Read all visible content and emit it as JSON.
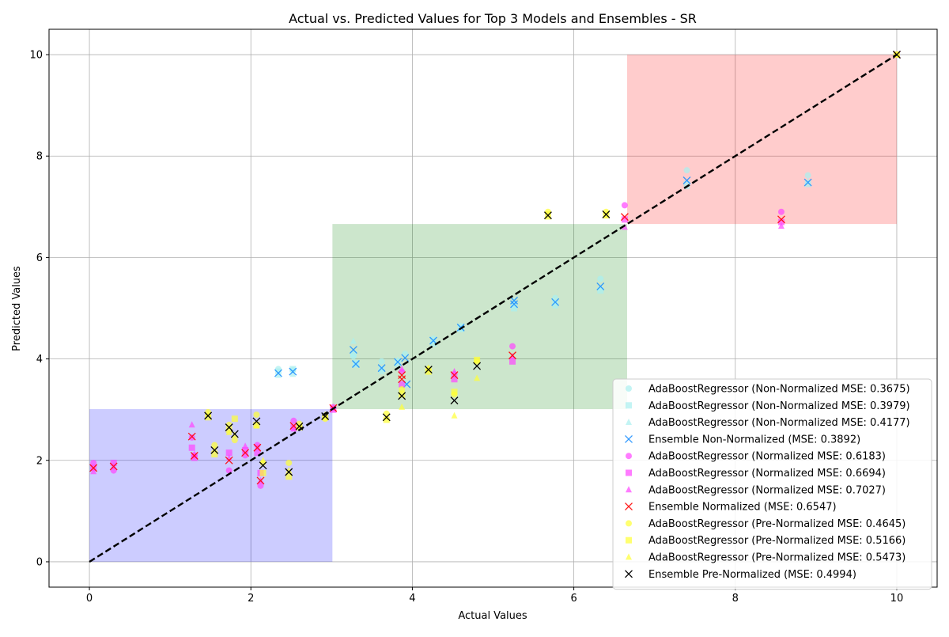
{
  "chart_data": {
    "type": "scatter",
    "title": "Actual vs. Predicted Values for Top 3 Models and Ensembles - SR",
    "xlabel": "Actual Values",
    "ylabel": "Predicted Values",
    "xlim": [
      -0.5,
      10.5
    ],
    "ylim": [
      -0.5,
      10.5
    ],
    "xticks": [
      0,
      2,
      4,
      6,
      8,
      10
    ],
    "yticks": [
      0,
      2,
      4,
      6,
      8,
      10
    ],
    "grid": true,
    "legend_position": "lower-right",
    "regions": [
      {
        "name": "low",
        "x": [
          0,
          3.01
        ],
        "y": [
          0,
          3.01
        ],
        "color": "#0000ff",
        "opacity": 0.2
      },
      {
        "name": "mid",
        "x": [
          3.01,
          6.66
        ],
        "y": [
          3.01,
          6.66
        ],
        "color": "#008000",
        "opacity": 0.2
      },
      {
        "name": "high",
        "x": [
          6.66,
          10
        ],
        "y": [
          6.66,
          10
        ],
        "color": "#ff0000",
        "opacity": 0.2
      }
    ],
    "reference_line": {
      "x": [
        0,
        10
      ],
      "y": [
        0,
        10
      ],
      "color": "#000000",
      "style": "dashed"
    },
    "series": [
      {
        "name": "AdaBoostRegressor (Non-Normalized MSE: 0.3675)",
        "marker": "circle",
        "color": "#aaf0f0",
        "opacity": 0.7,
        "points": [
          [
            2.34,
            3.8
          ],
          [
            2.52,
            3.78
          ],
          [
            3.27,
            4.05
          ],
          [
            3.3,
            3.9
          ],
          [
            3.62,
            3.95
          ],
          [
            3.82,
            3.88
          ],
          [
            3.91,
            4.1
          ],
          [
            4.26,
            4.4
          ],
          [
            4.6,
            4.65
          ],
          [
            5.26,
            5.05
          ],
          [
            5.77,
            5.2
          ],
          [
            6.33,
            5.58
          ],
          [
            7.4,
            7.72
          ],
          [
            8.9,
            7.62
          ],
          [
            10,
            10
          ]
        ]
      },
      {
        "name": "AdaBoostRegressor (Non-Normalized MSE: 0.3979)",
        "marker": "square",
        "color": "#aaf0f0",
        "opacity": 0.7,
        "points": [
          [
            2.34,
            3.75
          ],
          [
            2.52,
            3.8
          ],
          [
            3.27,
            4.1
          ],
          [
            3.3,
            3.92
          ],
          [
            3.62,
            3.8
          ],
          [
            3.82,
            3.95
          ],
          [
            3.91,
            3.5
          ],
          [
            4.26,
            4.3
          ],
          [
            4.6,
            4.6
          ],
          [
            5.26,
            5.0
          ],
          [
            5.77,
            5.1
          ],
          [
            6.33,
            5.35
          ],
          [
            7.4,
            7.45
          ],
          [
            8.9,
            7.45
          ],
          [
            10,
            10
          ]
        ]
      },
      {
        "name": "AdaBoostRegressor (Non-Normalized MSE: 0.4177)",
        "marker": "triangle",
        "color": "#aaf0f0",
        "opacity": 0.7,
        "points": [
          [
            2.34,
            3.68
          ],
          [
            2.52,
            3.7
          ],
          [
            3.27,
            4.35
          ],
          [
            3.3,
            3.88
          ],
          [
            3.62,
            3.75
          ],
          [
            3.82,
            3.98
          ],
          [
            3.91,
            3.55
          ],
          [
            4.26,
            4.35
          ],
          [
            4.6,
            4.58
          ],
          [
            5.26,
            5.15
          ],
          [
            5.77,
            5.05
          ],
          [
            6.33,
            5.4
          ],
          [
            7.4,
            7.4
          ],
          [
            8.9,
            7.5
          ],
          [
            10,
            10
          ]
        ]
      },
      {
        "name": "Ensemble Non-Normalized (MSE: 0.3892)",
        "marker": "x",
        "color": "#1e90ff",
        "opacity": 0.9,
        "points": [
          [
            2.34,
            3.72
          ],
          [
            2.52,
            3.75
          ],
          [
            3.27,
            4.18
          ],
          [
            3.3,
            3.9
          ],
          [
            3.62,
            3.82
          ],
          [
            3.82,
            3.94
          ],
          [
            3.91,
            4.02
          ],
          [
            3.93,
            3.5
          ],
          [
            4.26,
            4.36
          ],
          [
            4.6,
            4.62
          ],
          [
            5.26,
            5.08
          ],
          [
            5.26,
            5.15
          ],
          [
            5.77,
            5.12
          ],
          [
            6.33,
            5.43
          ],
          [
            7.4,
            7.52
          ],
          [
            8.9,
            7.48
          ],
          [
            10,
            10
          ]
        ]
      },
      {
        "name": "AdaBoostRegressor (Normalized MSE: 0.6183)",
        "marker": "circle",
        "color": "#ff44ff",
        "opacity": 0.7,
        "points": [
          [
            0.05,
            1.95
          ],
          [
            0.3,
            1.8
          ],
          [
            1.27,
            2.45
          ],
          [
            1.3,
            2.1
          ],
          [
            1.73,
            1.8
          ],
          [
            1.93,
            2.1
          ],
          [
            2.08,
            2.3
          ],
          [
            2.12,
            1.5
          ],
          [
            2.53,
            2.78
          ],
          [
            3.02,
            3.05
          ],
          [
            3.87,
            3.75
          ],
          [
            4.52,
            3.7
          ],
          [
            5.24,
            4.25
          ],
          [
            6.63,
            7.03
          ],
          [
            8.57,
            6.9
          ],
          [
            10,
            10
          ]
        ]
      },
      {
        "name": "AdaBoostRegressor (Normalized MSE: 0.6694)",
        "marker": "square",
        "color": "#ff44ff",
        "opacity": 0.7,
        "points": [
          [
            0.05,
            1.85
          ],
          [
            0.3,
            1.95
          ],
          [
            1.27,
            2.25
          ],
          [
            1.3,
            2.05
          ],
          [
            1.73,
            2.15
          ],
          [
            1.93,
            2.2
          ],
          [
            2.08,
            2.15
          ],
          [
            2.12,
            1.75
          ],
          [
            2.53,
            2.65
          ],
          [
            3.02,
            3.0
          ],
          [
            3.87,
            3.5
          ],
          [
            4.52,
            3.6
          ],
          [
            5.24,
            3.95
          ],
          [
            6.63,
            6.75
          ],
          [
            8.57,
            6.7
          ],
          [
            10,
            10
          ]
        ]
      },
      {
        "name": "AdaBoostRegressor (Normalized MSE: 0.7027)",
        "marker": "triangle",
        "color": "#ff44ff",
        "opacity": 0.7,
        "points": [
          [
            0.05,
            1.78
          ],
          [
            0.3,
            1.88
          ],
          [
            1.27,
            2.7
          ],
          [
            1.3,
            2.12
          ],
          [
            1.73,
            2.05
          ],
          [
            1.93,
            2.28
          ],
          [
            2.08,
            2.25
          ],
          [
            2.12,
            1.6
          ],
          [
            2.53,
            2.62
          ],
          [
            3.02,
            3.02
          ],
          [
            3.87,
            3.8
          ],
          [
            4.52,
            3.75
          ],
          [
            5.24,
            4.05
          ],
          [
            6.63,
            6.6
          ],
          [
            8.57,
            6.62
          ],
          [
            10,
            10
          ]
        ]
      },
      {
        "name": "Ensemble Normalized (MSE: 0.6547)",
        "marker": "x",
        "color": "#ff0000",
        "opacity": 0.9,
        "points": [
          [
            0.05,
            1.85
          ],
          [
            0.3,
            1.88
          ],
          [
            1.27,
            2.47
          ],
          [
            1.3,
            2.09
          ],
          [
            1.73,
            2.0
          ],
          [
            1.93,
            2.15
          ],
          [
            2.08,
            2.25
          ],
          [
            2.12,
            1.6
          ],
          [
            2.53,
            2.68
          ],
          [
            3.02,
            3.03
          ],
          [
            3.87,
            3.68
          ],
          [
            3.87,
            3.6
          ],
          [
            4.52,
            3.68
          ],
          [
            5.24,
            4.07
          ],
          [
            6.63,
            6.8
          ],
          [
            8.57,
            6.75
          ],
          [
            10,
            10
          ]
        ]
      },
      {
        "name": "AdaBoostRegressor (Pre-Normalized MSE: 0.4645)",
        "marker": "circle",
        "color": "#ffff33",
        "opacity": 0.7,
        "points": [
          [
            1.47,
            2.95
          ],
          [
            1.55,
            2.3
          ],
          [
            1.73,
            2.7
          ],
          [
            1.8,
            2.4
          ],
          [
            2.07,
            2.9
          ],
          [
            2.15,
            1.95
          ],
          [
            2.47,
            1.95
          ],
          [
            2.6,
            2.72
          ],
          [
            2.92,
            2.82
          ],
          [
            3.68,
            2.92
          ],
          [
            3.87,
            3.4
          ],
          [
            4.2,
            3.8
          ],
          [
            4.52,
            3.3
          ],
          [
            4.8,
            3.95
          ],
          [
            5.68,
            6.9
          ],
          [
            6.4,
            6.9
          ],
          [
            10,
            10
          ]
        ]
      },
      {
        "name": "AdaBoostRegressor (Pre-Normalized MSE: 0.5166)",
        "marker": "square",
        "color": "#ffff33",
        "opacity": 0.7,
        "points": [
          [
            1.47,
            2.85
          ],
          [
            1.55,
            2.12
          ],
          [
            1.73,
            2.6
          ],
          [
            1.8,
            2.82
          ],
          [
            2.07,
            2.7
          ],
          [
            2.15,
            1.75
          ],
          [
            2.47,
            1.68
          ],
          [
            2.6,
            2.65
          ],
          [
            2.92,
            2.85
          ],
          [
            3.68,
            2.8
          ],
          [
            3.87,
            3.3
          ],
          [
            4.2,
            3.75
          ],
          [
            4.52,
            3.35
          ],
          [
            4.8,
            3.98
          ],
          [
            5.68,
            6.85
          ],
          [
            6.4,
            6.85
          ],
          [
            10,
            10
          ]
        ]
      },
      {
        "name": "AdaBoostRegressor (Pre-Normalized MSE: 0.5473)",
        "marker": "triangle",
        "color": "#ffff33",
        "opacity": 0.7,
        "points": [
          [
            1.47,
            2.92
          ],
          [
            1.55,
            2.22
          ],
          [
            1.73,
            2.55
          ],
          [
            1.8,
            2.5
          ],
          [
            2.07,
            2.68
          ],
          [
            2.15,
            2.0
          ],
          [
            2.47,
            1.8
          ],
          [
            2.6,
            2.68
          ],
          [
            2.92,
            2.9
          ],
          [
            3.68,
            2.85
          ],
          [
            3.87,
            3.05
          ],
          [
            4.2,
            3.82
          ],
          [
            4.52,
            2.88
          ],
          [
            4.8,
            3.62
          ],
          [
            5.68,
            6.8
          ],
          [
            6.4,
            6.82
          ],
          [
            10,
            10
          ]
        ]
      },
      {
        "name": "Ensemble Pre-Normalized (MSE: 0.4994)",
        "marker": "x",
        "color": "#000000",
        "opacity": 1.0,
        "points": [
          [
            1.47,
            2.88
          ],
          [
            1.55,
            2.2
          ],
          [
            1.73,
            2.65
          ],
          [
            1.8,
            2.52
          ],
          [
            2.07,
            2.77
          ],
          [
            2.15,
            1.9
          ],
          [
            2.47,
            1.77
          ],
          [
            2.6,
            2.67
          ],
          [
            2.92,
            2.87
          ],
          [
            3.68,
            2.85
          ],
          [
            3.87,
            3.27
          ],
          [
            4.2,
            3.79
          ],
          [
            4.52,
            3.18
          ],
          [
            4.8,
            3.86
          ],
          [
            5.68,
            6.83
          ],
          [
            6.4,
            6.85
          ],
          [
            10,
            10
          ]
        ]
      }
    ]
  }
}
